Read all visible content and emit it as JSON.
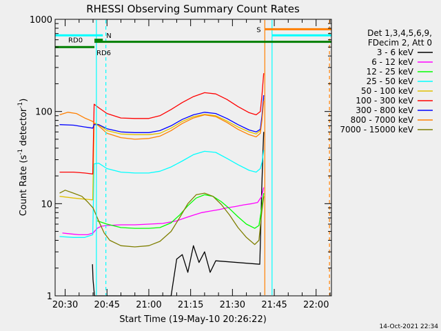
{
  "chart_data": {
    "type": "line",
    "title": "RHESSI Observing Summary Count Rates",
    "xlabel": "Start Time (19-May-10 20:26:22)",
    "ylabel_parts": [
      "Count Rate (s",
      "-1",
      " detector",
      "-1",
      ")"
    ],
    "yscale": "log",
    "ylim": [
      1,
      1000
    ],
    "xlim_minutes": [
      26.4,
      125.5
    ],
    "x_ticks": [
      {
        "label": "20:30",
        "minute": 30
      },
      {
        "label": "20:45",
        "minute": 45
      },
      {
        "label": "21:00",
        "minute": 60
      },
      {
        "label": "21:15",
        "minute": 75
      },
      {
        "label": "21:30",
        "minute": 90
      },
      {
        "label": "21:45",
        "minute": 105
      },
      {
        "label": "22:00",
        "minute": 120
      }
    ],
    "y_ticks": [
      {
        "label": "1",
        "value": 1
      },
      {
        "label": "10",
        "value": 10
      },
      {
        "label": "100",
        "value": 100
      },
      {
        "label": "1000",
        "value": 1000
      }
    ],
    "legend_header": [
      "Det 1,3,4,5,6,9,",
      "FDecim 2, Att 0"
    ],
    "legend_position": "right",
    "footer_date": "14-Oct-2021 22:34",
    "flags": [
      {
        "label": "N",
        "color": "#00ffff",
        "y": 670,
        "x": [
          26.4,
          43.5
        ]
      },
      {
        "label": "RD0",
        "color": "#007f00",
        "y": 600,
        "x": [
          40.5,
          43.5
        ]
      },
      {
        "label": "RD6",
        "color": "#007f00",
        "y": 500,
        "x": [
          26.4,
          40.5
        ]
      },
      {
        "label": "",
        "color": "#007f00",
        "y": 570,
        "x": [
          40.5,
          125.5
        ]
      },
      {
        "label": "S",
        "color": "#ff7f00",
        "y": 780,
        "x": [
          101.6,
          125.5
        ]
      },
      {
        "label": "",
        "color": "#00ffff",
        "y": 670,
        "x": [
          104.2,
          125.5
        ]
      }
    ],
    "vertical_markers": [
      {
        "color": "#00ffff",
        "minute": 41.2,
        "dashed": false
      },
      {
        "color": "#00ffff",
        "minute": 44.6,
        "dashed": true
      },
      {
        "color": "#ff7f00",
        "minute": 101.6,
        "dashed": false
      },
      {
        "color": "#00ffff",
        "minute": 104.2,
        "dashed": false
      },
      {
        "color": "#ff7f00",
        "minute": 124.8,
        "dashed": true
      }
    ],
    "series": [
      {
        "name": "3 - 6 keV",
        "color": "#000000",
        "x": [
          39.8,
          40,
          40.5,
          41,
          68,
          70,
          72,
          74,
          76,
          78,
          80,
          82,
          84,
          99.8,
          100.2,
          100.5,
          100.9,
          101.2
        ],
        "y": [
          2.2,
          1.5,
          1,
          1,
          1,
          2.5,
          2.8,
          1.8,
          3.5,
          2.3,
          3,
          1.8,
          2.4,
          2.2,
          6,
          14,
          35,
          60
        ]
      },
      {
        "name": "6 - 12 keV",
        "color": "#ff00ff",
        "x": [
          29,
          32,
          35,
          38,
          40,
          41.5,
          43,
          45,
          50,
          55,
          60,
          65,
          70,
          73,
          76,
          79,
          82,
          85,
          88,
          91,
          94,
          97,
          99,
          100.5,
          101.2
        ],
        "y": [
          4.8,
          4.7,
          4.6,
          4.6,
          4.8,
          5.4,
          5.7,
          5.8,
          5.9,
          5.9,
          6.0,
          6.1,
          6.5,
          7.0,
          7.5,
          8.0,
          8.3,
          8.6,
          9.0,
          9.3,
          9.7,
          10.0,
          10.3,
          12,
          15
        ]
      },
      {
        "name": "12 - 25 keV",
        "color": "#00ff00",
        "x": [
          41.5,
          45,
          50,
          55,
          60,
          64,
          68,
          71,
          74,
          77,
          80,
          83,
          86,
          89,
          92,
          95,
          98,
          99.5,
          100.5,
          101.2
        ],
        "y": [
          6.5,
          6.0,
          5.5,
          5.4,
          5.4,
          5.5,
          6.2,
          7.5,
          9.5,
          11.5,
          12.5,
          12.0,
          10.5,
          8.8,
          7.2,
          6.0,
          5.4,
          5.8,
          9,
          13
        ]
      },
      {
        "name": "25 - 50 keV",
        "color": "#00ffff",
        "x": [
          28,
          33,
          37,
          39.9,
          40.4,
          42,
          45,
          50,
          55,
          60,
          64,
          68,
          72,
          76,
          80,
          84,
          88,
          92,
          96,
          98.5,
          100,
          100.6,
          101.2
        ],
        "y": [
          4.4,
          4.3,
          4.3,
          4.6,
          27,
          27.5,
          24,
          22,
          21.5,
          21.5,
          22.5,
          25,
          29,
          34,
          37,
          36,
          31,
          26.5,
          23,
          22,
          24,
          28,
          38
        ]
      },
      {
        "name": "50 - 100 keV",
        "color": "#e0c000",
        "x": [
          28,
          33,
          37,
          39.9,
          40.4,
          42,
          45,
          50,
          55,
          60,
          64,
          68,
          72,
          76,
          80,
          84,
          88,
          92,
          96,
          98.5,
          100,
          100.6,
          101.2
        ],
        "y": [
          12,
          11.5,
          11.2,
          11.0,
          75,
          72,
          62,
          57,
          56,
          56,
          58,
          66,
          78,
          88,
          93,
          90,
          79,
          68,
          60,
          57,
          62,
          85,
          140
        ]
      },
      {
        "name": "100 - 300 keV",
        "color": "#ff0000",
        "x": [
          28,
          33,
          37,
          39.9,
          40.4,
          42,
          45,
          50,
          55,
          60,
          64,
          68,
          72,
          76,
          80,
          84,
          88,
          92,
          96,
          98.5,
          100,
          100.6,
          101.2
        ],
        "y": [
          22,
          22,
          21.5,
          21.0,
          120,
          110,
          95,
          85,
          84,
          84,
          90,
          105,
          125,
          145,
          160,
          155,
          135,
          113,
          97,
          92,
          100,
          150,
          260
        ]
      },
      {
        "name": "300 - 800 keV",
        "color": "#0000ff",
        "x": [
          28,
          33,
          37,
          39.9,
          40.4,
          42,
          45,
          50,
          55,
          60,
          64,
          68,
          72,
          76,
          80,
          84,
          88,
          92,
          96,
          98.5,
          100,
          100.6,
          101.2
        ],
        "y": [
          72,
          71,
          68,
          66,
          72,
          72,
          65,
          60,
          59,
          59,
          62,
          70,
          82,
          92,
          98,
          95,
          84,
          72,
          63,
          60,
          64,
          90,
          150
        ]
      },
      {
        "name": "800 - 7000 keV",
        "color": "#ff7f00",
        "x": [
          28,
          31,
          34,
          37,
          39.9,
          40.4,
          42,
          45,
          50,
          55,
          60,
          64,
          68,
          72,
          76,
          80,
          84,
          88,
          92,
          96,
          98.5,
          100,
          100.6,
          101.2
        ],
        "y": [
          92,
          98,
          95,
          85,
          78,
          75,
          70,
          58,
          52,
          50,
          51,
          54,
          62,
          74,
          85,
          92,
          88,
          76,
          64,
          56,
          53,
          58,
          80,
          130
        ]
      },
      {
        "name": "7000 - 15000 keV",
        "color": "#7f7f00",
        "x": [
          28,
          30,
          33,
          36,
          38,
          40,
          42,
          44,
          46,
          50,
          55,
          60,
          64,
          68,
          71,
          74,
          77,
          80,
          83,
          86,
          89,
          92,
          95,
          98,
          99.5,
          100.5,
          101.2
        ],
        "y": [
          13,
          14,
          13,
          12,
          10.5,
          9,
          6.5,
          4.8,
          4.0,
          3.5,
          3.4,
          3.5,
          3.9,
          5.0,
          7.0,
          10.0,
          12.5,
          13.0,
          12.0,
          9.8,
          7.5,
          5.5,
          4.3,
          3.6,
          4.0,
          8,
          12
        ]
      }
    ]
  }
}
